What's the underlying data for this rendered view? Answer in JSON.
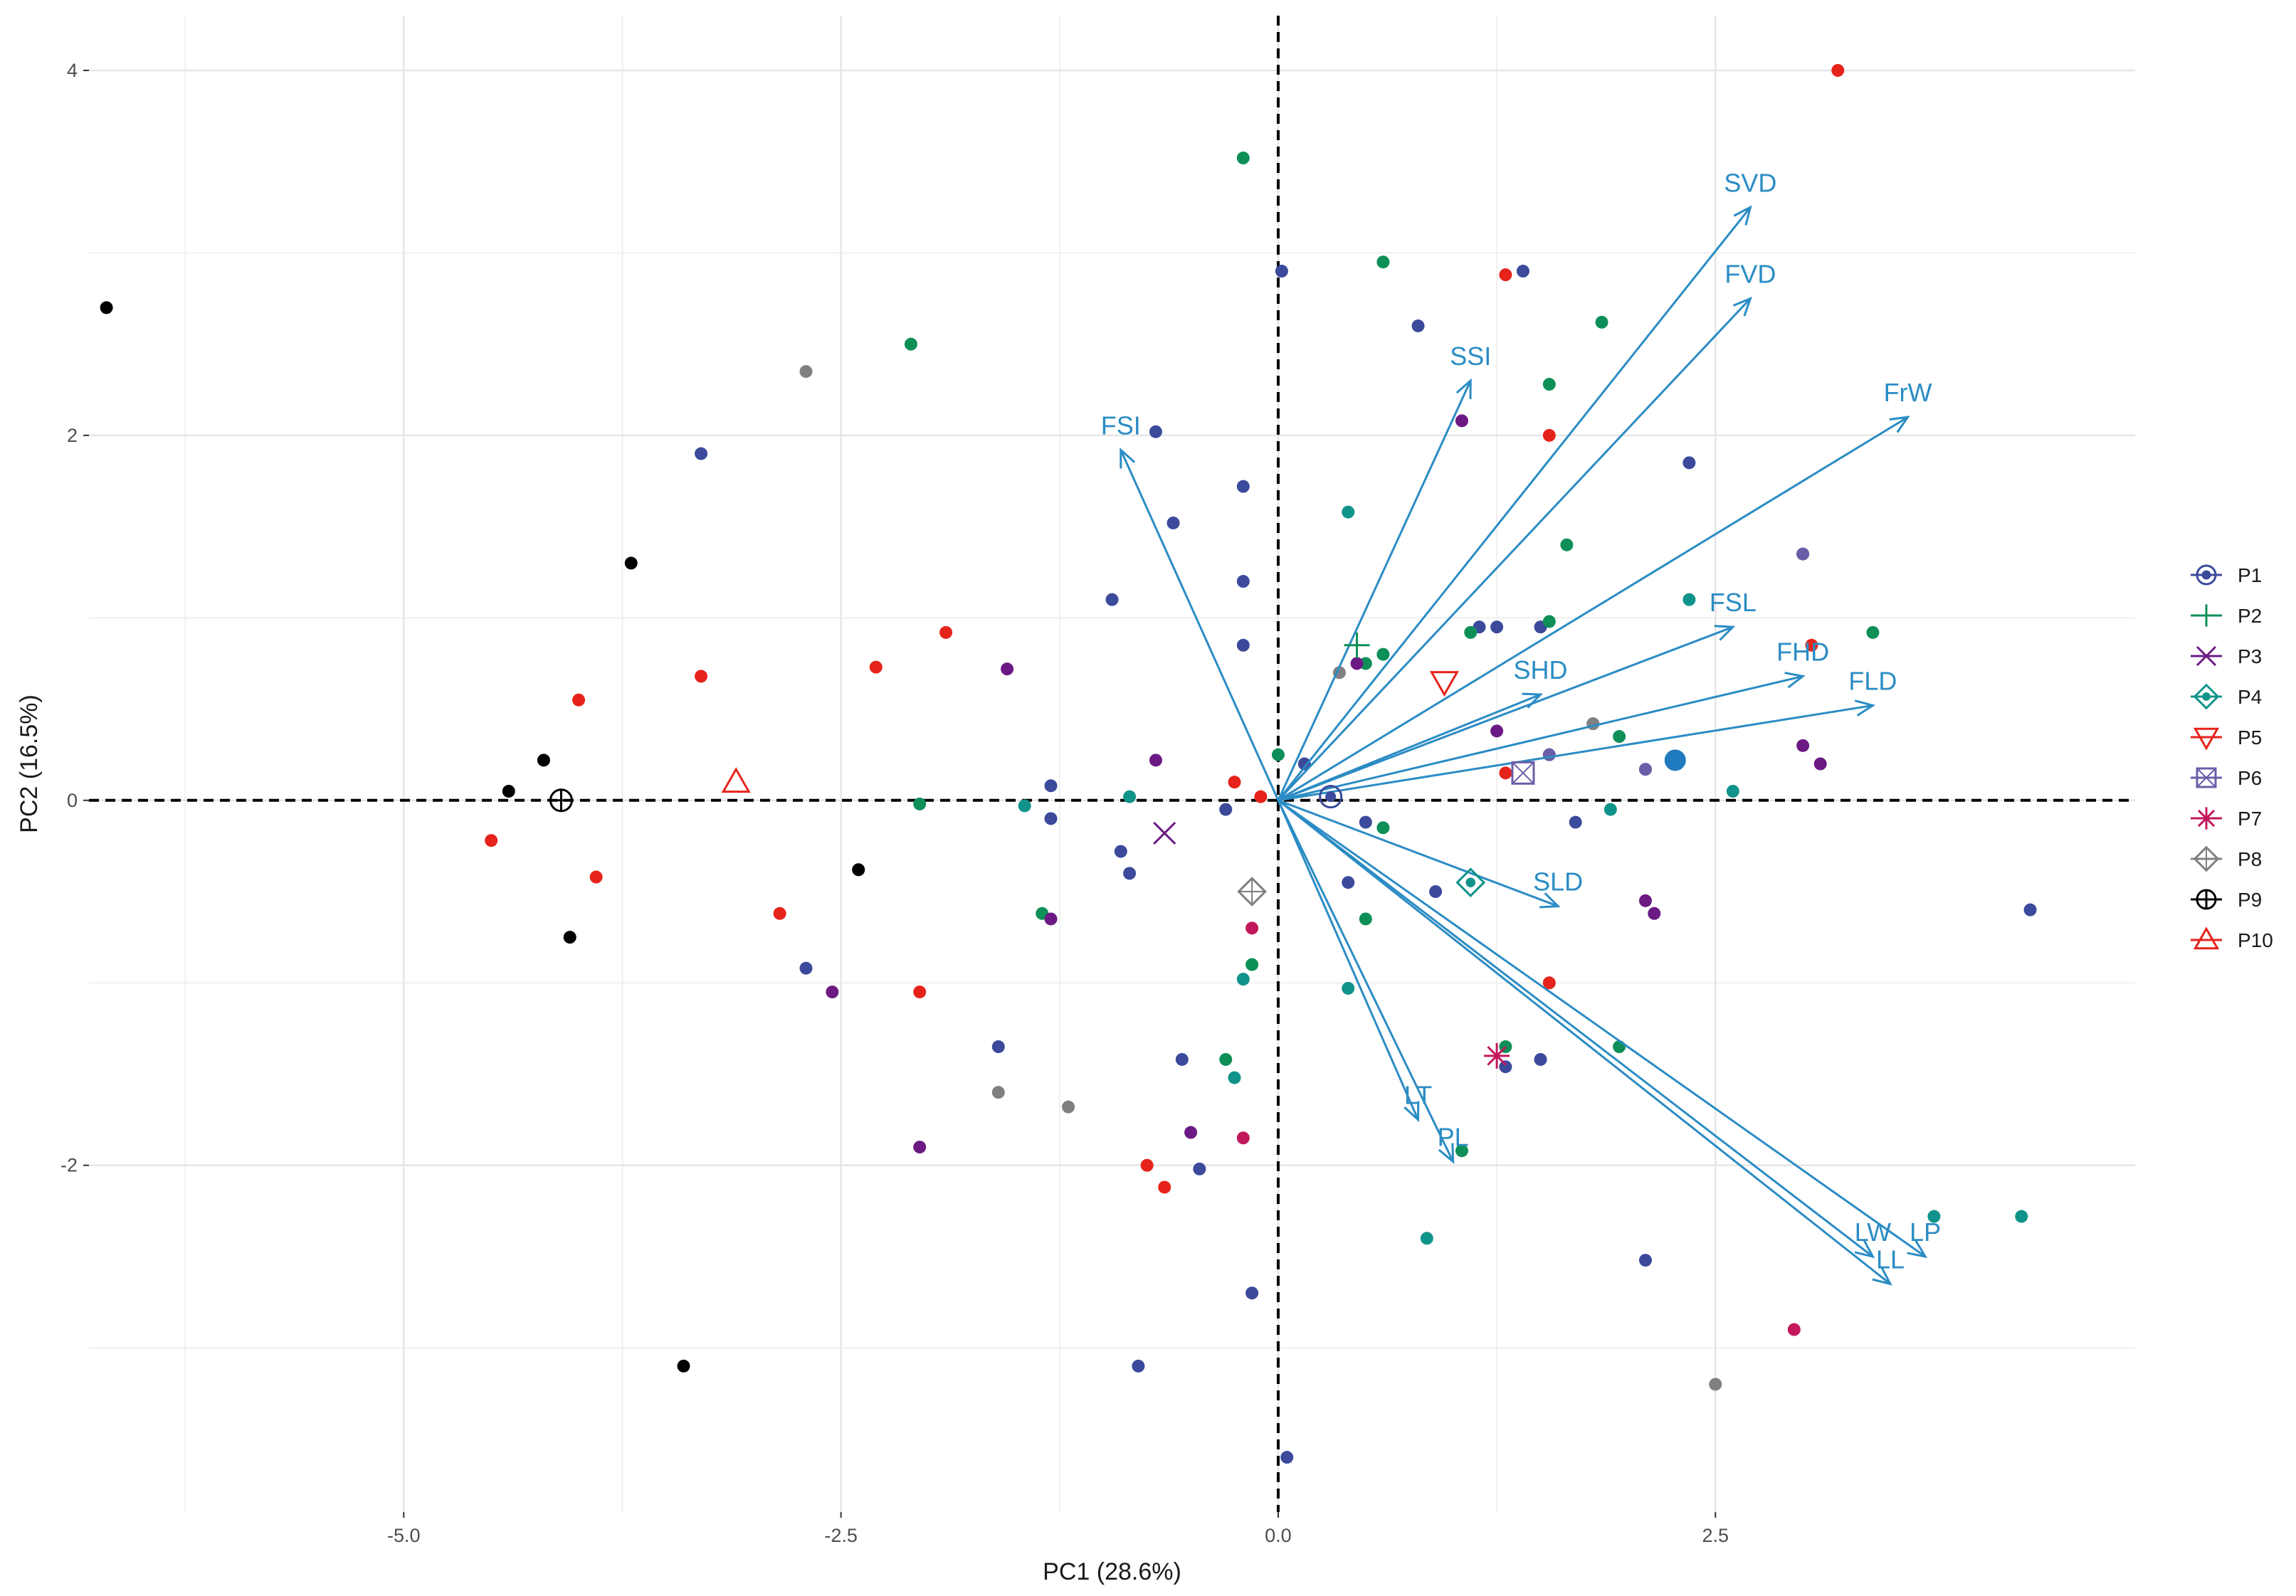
{
  "chart_data": {
    "type": "scatter",
    "subtype": "pca-biplot",
    "title": "",
    "xlabel": "PC1 (28.6%)",
    "ylabel": "PC2 (16.5%)",
    "xlim": [
      -6.8,
      4.9
    ],
    "ylim": [
      -3.9,
      4.3
    ],
    "x_ticks": [
      -5.0,
      -2.5,
      0.0,
      2.5
    ],
    "x_tick_labels": [
      "-5.0",
      "-2.5",
      "0.0",
      "2.5"
    ],
    "y_ticks": [
      -2,
      0,
      2,
      4
    ],
    "y_tick_labels": [
      "-2",
      "0",
      "2",
      "4"
    ],
    "grid": true,
    "reference_lines": {
      "x": 0,
      "y": 0,
      "style": "dashed"
    },
    "loadings": [
      {
        "label": "SVD",
        "x": 2.7,
        "y": 3.25
      },
      {
        "label": "FVD",
        "x": 2.7,
        "y": 2.75
      },
      {
        "label": "SSI",
        "x": 1.1,
        "y": 2.3
      },
      {
        "label": "FrW",
        "x": 3.6,
        "y": 2.1
      },
      {
        "label": "FSI",
        "x": -0.9,
        "y": 1.92
      },
      {
        "label": "FSL",
        "x": 2.6,
        "y": 0.95
      },
      {
        "label": "FHD",
        "x": 3.0,
        "y": 0.68
      },
      {
        "label": "FLD",
        "x": 3.4,
        "y": 0.52
      },
      {
        "label": "SHD",
        "x": 1.5,
        "y": 0.58
      },
      {
        "label": "SLD",
        "x": 1.6,
        "y": -0.58
      },
      {
        "label": "LT",
        "x": 0.8,
        "y": -1.75
      },
      {
        "label": "PL",
        "x": 1.0,
        "y": -1.98
      },
      {
        "label": "LW",
        "x": 3.4,
        "y": -2.5
      },
      {
        "label": "LP",
        "x": 3.7,
        "y": -2.5
      },
      {
        "label": "LL",
        "x": 3.5,
        "y": -2.65
      }
    ],
    "series": [
      {
        "name": "P1",
        "color": "#3b4a9b",
        "centroid": {
          "x": 0.3,
          "y": 0.02
        },
        "centroid_symbol": "circle-dot",
        "points": [
          [
            0.02,
            2.9
          ],
          [
            1.4,
            2.9
          ],
          [
            0.8,
            2.6
          ],
          [
            -0.7,
            2.02
          ],
          [
            -3.3,
            1.9
          ],
          [
            -0.6,
            1.52
          ],
          [
            -0.2,
            1.72
          ],
          [
            -0.2,
            1.2
          ],
          [
            -0.2,
            0.85
          ],
          [
            -0.95,
            1.1
          ],
          [
            2.35,
            1.85
          ],
          [
            1.15,
            0.95
          ],
          [
            1.5,
            0.95
          ],
          [
            1.25,
            0.95
          ],
          [
            1.55,
            0.25
          ],
          [
            0.15,
            0.2
          ],
          [
            -1.3,
            0.08
          ],
          [
            -1.3,
            -0.1
          ],
          [
            -0.3,
            -0.05
          ],
          [
            0.5,
            -0.12
          ],
          [
            1.7,
            -0.12
          ],
          [
            -0.9,
            -0.28
          ],
          [
            -0.85,
            -0.4
          ],
          [
            0.4,
            -0.45
          ],
          [
            0.9,
            -0.5
          ],
          [
            -2.7,
            -0.92
          ],
          [
            -1.6,
            -1.35
          ],
          [
            -0.55,
            -1.42
          ],
          [
            1.5,
            -1.42
          ],
          [
            1.3,
            -1.46
          ],
          [
            -0.45,
            -2.02
          ],
          [
            2.1,
            -2.52
          ],
          [
            -0.8,
            -3.1
          ],
          [
            -0.15,
            -2.7
          ],
          [
            0.05,
            -3.6
          ],
          [
            4.3,
            -0.6
          ]
        ]
      },
      {
        "name": "P2",
        "color": "#0e8f58",
        "centroid": {
          "x": 0.45,
          "y": 0.85
        },
        "centroid_symbol": "plus",
        "points": [
          [
            -0.2,
            3.52
          ],
          [
            0.6,
            2.95
          ],
          [
            1.85,
            2.62
          ],
          [
            -2.1,
            2.5
          ],
          [
            1.55,
            2.28
          ],
          [
            1.65,
            1.4
          ],
          [
            1.55,
            0.98
          ],
          [
            1.1,
            0.92
          ],
          [
            0.6,
            0.8
          ],
          [
            0.5,
            0.75
          ],
          [
            -2.05,
            -0.02
          ],
          [
            1.95,
            0.35
          ],
          [
            0.0,
            0.25
          ],
          [
            0.6,
            -0.15
          ],
          [
            0.5,
            -0.65
          ],
          [
            1.95,
            -1.35
          ],
          [
            1.3,
            -1.35
          ],
          [
            3.4,
            0.92
          ],
          [
            -1.35,
            -0.62
          ],
          [
            -0.3,
            -1.42
          ],
          [
            -0.15,
            -0.9
          ],
          [
            1.05,
            -1.92
          ]
        ]
      },
      {
        "name": "P3",
        "color": "#6b1a84",
        "centroid": {
          "x": -0.65,
          "y": -0.18
        },
        "centroid_symbol": "cross",
        "points": [
          [
            1.05,
            2.08
          ],
          [
            3.0,
            1.35
          ],
          [
            -1.55,
            0.72
          ],
          [
            0.45,
            0.75
          ],
          [
            1.25,
            0.38
          ],
          [
            2.1,
            0.17
          ],
          [
            3.0,
            0.3
          ],
          [
            3.1,
            0.2
          ],
          [
            -0.7,
            0.22
          ],
          [
            -0.5,
            -1.82
          ],
          [
            -2.05,
            -1.9
          ],
          [
            -2.55,
            -1.05
          ],
          [
            -1.3,
            -0.65
          ],
          [
            2.1,
            -0.55
          ],
          [
            2.15,
            -0.62
          ]
        ]
      },
      {
        "name": "P4",
        "color": "#10938a",
        "centroid": {
          "x": 1.1,
          "y": -0.45
        },
        "centroid_symbol": "diamond-dot",
        "points": [
          [
            0.4,
            1.58
          ],
          [
            2.35,
            1.1
          ],
          [
            2.6,
            0.05
          ],
          [
            1.9,
            -0.05
          ],
          [
            -0.85,
            0.02
          ],
          [
            -1.45,
            -0.03
          ],
          [
            0.4,
            -1.03
          ],
          [
            0.85,
            -2.4
          ],
          [
            -0.25,
            -1.52
          ],
          [
            -0.2,
            -0.98
          ],
          [
            3.75,
            -2.28
          ],
          [
            4.25,
            -2.28
          ]
        ]
      },
      {
        "name": "P5",
        "color": "#e6231b",
        "centroid": {
          "x": 0.95,
          "y": 0.65
        },
        "centroid_symbol": "triangle-down",
        "points": [
          [
            3.2,
            4.0
          ],
          [
            1.3,
            2.88
          ],
          [
            1.55,
            2.0
          ],
          [
            3.05,
            0.85
          ],
          [
            1.3,
            0.15
          ],
          [
            -0.25,
            0.1
          ],
          [
            -0.1,
            0.02
          ],
          [
            -1.9,
            0.92
          ],
          [
            -2.3,
            0.73
          ],
          [
            -3.3,
            0.68
          ],
          [
            -4.0,
            0.55
          ],
          [
            -4.5,
            -0.22
          ],
          [
            -3.9,
            -0.42
          ],
          [
            -2.85,
            -0.62
          ],
          [
            -2.05,
            -1.05
          ],
          [
            -0.75,
            -2.0
          ],
          [
            -0.65,
            -2.12
          ],
          [
            1.55,
            -1.0
          ]
        ]
      },
      {
        "name": "P6",
        "color": "#6b5ea8",
        "centroid": {
          "x": 1.4,
          "y": 0.15
        },
        "centroid_symbol": "square-cross",
        "points": [
          [
            3.0,
            1.35
          ],
          [
            2.1,
            0.17
          ],
          [
            1.55,
            0.25
          ],
          [
            1.8,
            0.42
          ]
        ]
      },
      {
        "name": "P7",
        "color": "#c2185b",
        "centroid": {
          "x": 1.25,
          "y": -1.4
        },
        "centroid_symbol": "asterisk",
        "points": [
          [
            2.95,
            -2.9
          ],
          [
            -0.2,
            -1.85
          ],
          [
            -0.15,
            -0.7
          ]
        ]
      },
      {
        "name": "P8",
        "color": "#808080",
        "centroid": {
          "x": -0.15,
          "y": -0.5
        },
        "centroid_symbol": "diamond-plus",
        "points": [
          [
            -2.7,
            2.35
          ],
          [
            0.35,
            0.7
          ],
          [
            1.8,
            0.42
          ],
          [
            -1.6,
            -1.6
          ],
          [
            -1.2,
            -1.68
          ],
          [
            2.5,
            -3.2
          ]
        ]
      },
      {
        "name": "P9",
        "color": "#000000",
        "centroid": {
          "x": -4.1,
          "y": 0.0
        },
        "centroid_symbol": "circle-plus",
        "points": [
          [
            -6.7,
            2.7
          ],
          [
            -3.7,
            1.3
          ],
          [
            -4.2,
            0.22
          ],
          [
            -4.4,
            0.05
          ],
          [
            -2.4,
            -0.38
          ],
          [
            -4.05,
            -0.75
          ],
          [
            -3.4,
            -3.1
          ]
        ]
      },
      {
        "name": "P10",
        "color": "#e6231b",
        "centroid": {
          "x": -3.1,
          "y": 0.1
        },
        "centroid_symbol": "triangle-up",
        "points": []
      }
    ],
    "highlight_points": [
      {
        "x": 2.27,
        "y": 0.22,
        "color": "#1f7bbd"
      }
    ],
    "legend": {
      "position": "right",
      "entries": [
        "P1",
        "P2",
        "P3",
        "P4",
        "P5",
        "P6",
        "P7",
        "P8",
        "P9",
        "P10"
      ]
    }
  }
}
